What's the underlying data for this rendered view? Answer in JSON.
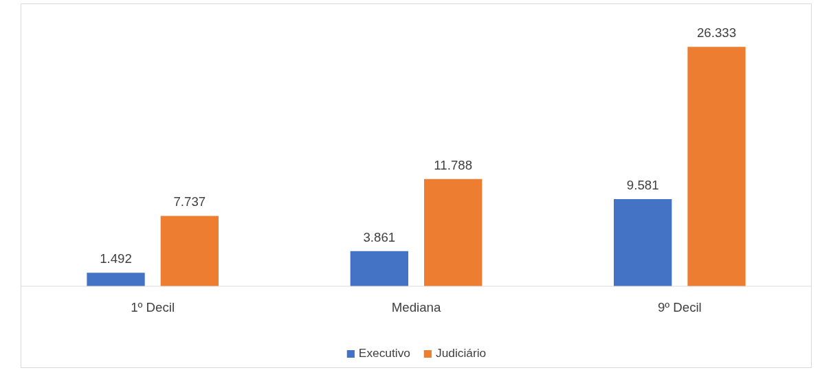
{
  "chart_data": {
    "type": "bar",
    "categories": [
      "1º Decil",
      "Mediana",
      "9º Decil"
    ],
    "series": [
      {
        "name": "Executivo",
        "color": "#4472c4",
        "values": [
          1492,
          3861,
          9581
        ],
        "value_labels": [
          "1.492",
          "3.861",
          "9.581"
        ]
      },
      {
        "name": "Judiciário",
        "color": "#ed7d31",
        "values": [
          7737,
          11788,
          26333
        ],
        "value_labels": [
          "7.737",
          "11.788",
          "26.333"
        ]
      }
    ],
    "legend": "bottom"
  }
}
